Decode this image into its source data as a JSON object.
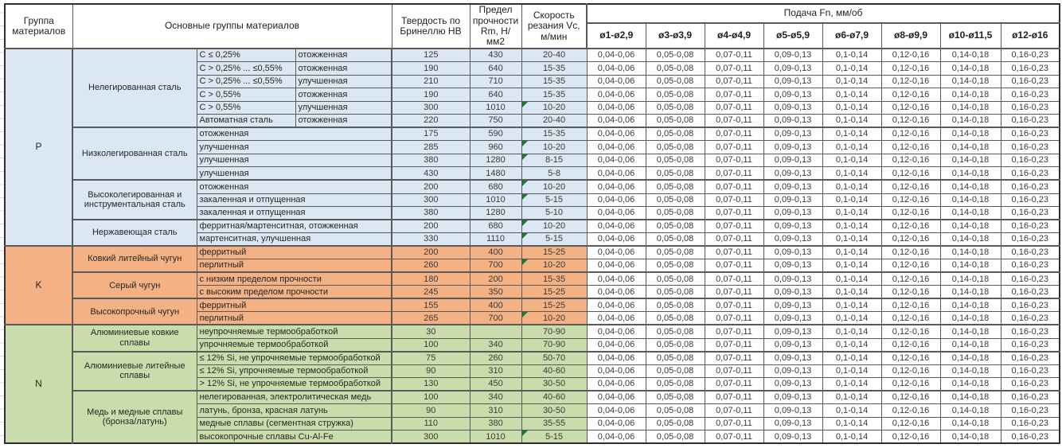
{
  "colors": {
    "group_p": "#dbe7f2",
    "group_k": "#f4b183",
    "group_n": "#c9dcab",
    "flag": "#1e7a33"
  },
  "table": {
    "header": {
      "group": "Группа материалов",
      "main_groups": "Основные группы материалов",
      "hardness": "Твердость по Бринеллю НВ",
      "strength": "Предел прочности Rm, Н/мм2",
      "speed": "Скорость резания Vc, м/мин",
      "feed": "Подача Fn, мм/об",
      "diameters": [
        "ø1-ø2,9",
        "ø3-ø3,9",
        "ø4-ø4,9",
        "ø5-ø5,9",
        "ø6-ø7,9",
        "ø8-ø9,9",
        "ø10-ø11,5",
        "ø12-ø16"
      ]
    },
    "feed_values": [
      "0,04-0,06",
      "0,05-0,08",
      "0,07-0,11",
      "0,09-0,13",
      "0,1-0,14",
      "0,12-0,16",
      "0,14-0,18",
      "0,16-0,23"
    ],
    "groups": [
      {
        "code": "P",
        "color": "#dbe7f2",
        "subgroups": [
          {
            "name": "Нелегированная сталь",
            "rows": [
              {
                "spec": "C ≤ 0,25%",
                "desc": "отожженная",
                "hb": "125",
                "rm": "430",
                "vc": "20-40",
                "flag": false
              },
              {
                "spec": "C > 0,25% ... ≤0,55%",
                "desc": "отожженная",
                "hb": "190",
                "rm": "640",
                "vc": "15-35",
                "flag": false
              },
              {
                "spec": "C > 0,25% ... ≤0,55%",
                "desc": "улучшенная",
                "hb": "210",
                "rm": "710",
                "vc": "15-35",
                "flag": false
              },
              {
                "spec": "C > 0,55%",
                "desc": "отожженная",
                "hb": "190",
                "rm": "640",
                "vc": "15-35",
                "flag": false
              },
              {
                "spec": "C > 0,55%",
                "desc": "улучшенная",
                "hb": "300",
                "rm": "1010",
                "vc": "10-20",
                "flag": true
              },
              {
                "spec": "Автоматная сталь",
                "desc": "отожженная",
                "hb": "220",
                "rm": "750",
                "vc": "20-40",
                "flag": false
              }
            ]
          },
          {
            "name": "Низколегированная сталь",
            "rows": [
              {
                "spec": null,
                "desc": "отожженная",
                "hb": "175",
                "rm": "590",
                "vc": "15-35",
                "flag": false
              },
              {
                "spec": null,
                "desc": "улучшенная",
                "hb": "285",
                "rm": "960",
                "vc": "10-20",
                "flag": true
              },
              {
                "spec": null,
                "desc": "улучшенная",
                "hb": "380",
                "rm": "1280",
                "vc": "8-15",
                "flag": true
              },
              {
                "spec": null,
                "desc": "улучшенная",
                "hb": "430",
                "rm": "1480",
                "vc": "5-8",
                "flag": false
              }
            ]
          },
          {
            "name": "Высоколегированная и инструментальная сталь",
            "rows": [
              {
                "spec": null,
                "desc": "отожженная",
                "hb": "200",
                "rm": "680",
                "vc": "10-20",
                "flag": true
              },
              {
                "spec": null,
                "desc": "закаленная и отпущенная",
                "hb": "300",
                "rm": "1010",
                "vc": "5-15",
                "flag": true
              },
              {
                "spec": null,
                "desc": "закаленная и отпущенная",
                "hb": "380",
                "rm": "1280",
                "vc": "5-10",
                "flag": false
              }
            ]
          },
          {
            "name": "Нержавеющая сталь",
            "rows": [
              {
                "spec": null,
                "desc": "ферритная/мартенситная, отожженная",
                "hb": "200",
                "rm": "680",
                "vc": "10-20",
                "flag": true
              },
              {
                "spec": null,
                "desc": "мартенситная, улучшенная",
                "hb": "330",
                "rm": "1110",
                "vc": "5-15",
                "flag": true
              }
            ]
          }
        ]
      },
      {
        "code": "K",
        "color": "#f4b183",
        "subgroups": [
          {
            "name": "Ковкий литейный чугун",
            "rows": [
              {
                "spec": null,
                "desc": "ферритный",
                "hb": "200",
                "rm": "400",
                "vc": "15-25",
                "flag": false
              },
              {
                "spec": null,
                "desc": "перлитный",
                "hb": "260",
                "rm": "700",
                "vc": "10-20",
                "flag": true
              }
            ]
          },
          {
            "name": "Серый чугун",
            "rows": [
              {
                "spec": null,
                "desc": "с низким пределом прочности",
                "hb": "180",
                "rm": "200",
                "vc": "15-35",
                "flag": false
              },
              {
                "spec": null,
                "desc": "с высоким пределом прочности",
                "hb": "245",
                "rm": "350",
                "vc": "15-25",
                "flag": false
              }
            ]
          },
          {
            "name": "Высокопрочный чугун",
            "rows": [
              {
                "spec": null,
                "desc": "ферритный",
                "hb": "155",
                "rm": "400",
                "vc": "15-25",
                "flag": false
              },
              {
                "spec": null,
                "desc": "перлитный",
                "hb": "265",
                "rm": "700",
                "vc": "10-20",
                "flag": true
              }
            ]
          }
        ]
      },
      {
        "code": "N",
        "color": "#c9dcab",
        "subgroups": [
          {
            "name": "Алюминиевые ковкие сплавы",
            "rows": [
              {
                "spec": null,
                "desc": "неупрочняемые термообработкой",
                "hb": "30",
                "rm": "",
                "vc": "70-90",
                "flag": false
              },
              {
                "spec": null,
                "desc": "упрочняемые термообработкой",
                "hb": "100",
                "rm": "340",
                "vc": "70-90",
                "flag": false
              }
            ]
          },
          {
            "name": "Алюминиевые литейные сплавы",
            "rows": [
              {
                "spec": null,
                "desc": "≤ 12% Si, не упрочняемые термообработкой",
                "hb": "75",
                "rm": "260",
                "vc": "50-70",
                "flag": false
              },
              {
                "spec": null,
                "desc": "≤ 12% Si, упрочняемые термообработкой",
                "hb": "90",
                "rm": "310",
                "vc": "40-60",
                "flag": false
              },
              {
                "spec": null,
                "desc": "> 12% Si, не упрочняемые термообработкой",
                "hb": "130",
                "rm": "450",
                "vc": "30-50",
                "flag": false
              }
            ]
          },
          {
            "name": "Медь и медные сплавы (бронза/латунь)",
            "rows": [
              {
                "spec": null,
                "desc": "нелегированная, электролитическая медь",
                "hb": "100",
                "rm": "340",
                "vc": "40-60",
                "flag": false
              },
              {
                "spec": null,
                "desc": "латунь, бронза, красная латунь",
                "hb": "90",
                "rm": "310",
                "vc": "30-50",
                "flag": false
              },
              {
                "spec": null,
                "desc": "медные сплавы (сегментная стружка)",
                "hb": "110",
                "rm": "380",
                "vc": "35-55",
                "flag": false
              },
              {
                "spec": null,
                "desc": "высокопрочные сплавы Cu-Al-Fe",
                "hb": "300",
                "rm": "1010",
                "vc": "5-15",
                "flag": true
              }
            ]
          }
        ]
      }
    ]
  }
}
